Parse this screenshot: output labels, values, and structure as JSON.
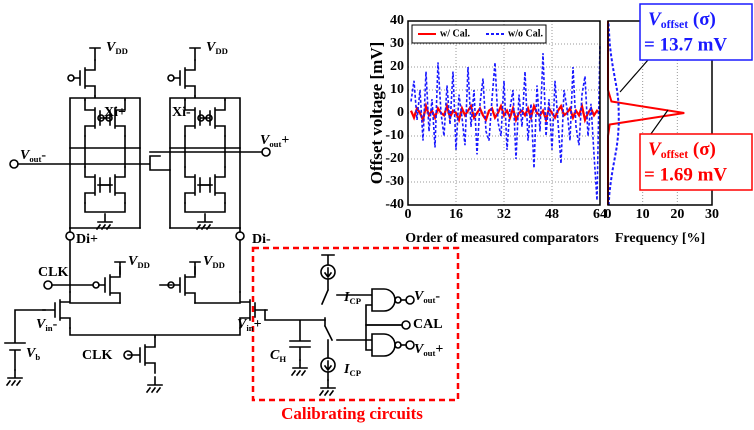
{
  "circuit": {
    "labels": [
      {
        "main": "V",
        "sub": "DD"
      },
      {
        "main": "V",
        "sub": "DD"
      },
      {
        "main": "Xi+"
      },
      {
        "main": "Xi-"
      },
      {
        "main": "V",
        "sub": "out",
        "tail": "-"
      },
      {
        "main": "V",
        "sub": "out",
        "tail": "+"
      },
      {
        "main": "Di+"
      },
      {
        "main": "Di-"
      },
      {
        "main": "V",
        "sub": "DD"
      },
      {
        "main": "V",
        "sub": "DD"
      },
      {
        "main": "CLK"
      },
      {
        "main": "V",
        "sub": "in",
        "tail": "-"
      },
      {
        "main": "V",
        "sub": "in",
        "tail": "+"
      },
      {
        "main": "V",
        "sub": "b"
      },
      {
        "main": "CLK"
      },
      {
        "main": "I",
        "sub": "CP"
      },
      {
        "main": "C",
        "sub": "H"
      },
      {
        "main": "I",
        "sub": "CP"
      },
      {
        "main": "V",
        "sub": "out",
        "tail": "-"
      },
      {
        "main": "CAL"
      },
      {
        "main": "V",
        "sub": "out",
        "tail": "+"
      }
    ],
    "caption": "Calibrating circuits"
  },
  "chart_data": [
    {
      "type": "line",
      "y_label": "Offset voltage [mV]",
      "x_label": "Order of measured comparators",
      "x": [
        1,
        2,
        3,
        4,
        5,
        6,
        7,
        8,
        9,
        10,
        11,
        12,
        13,
        14,
        15,
        16,
        17,
        18,
        19,
        20,
        21,
        22,
        23,
        24,
        25,
        26,
        27,
        28,
        29,
        30,
        31,
        32,
        33,
        34,
        35,
        36,
        37,
        38,
        39,
        40,
        41,
        42,
        43,
        44,
        45,
        46,
        47,
        48,
        49,
        50,
        51,
        52,
        53,
        54,
        55,
        56,
        57,
        58,
        59,
        60,
        61,
        62,
        63,
        64
      ],
      "series": [
        {
          "name": "w/ Cal.",
          "color": "#ff0000",
          "values": [
            1,
            -2,
            2,
            0,
            -3,
            3,
            -1,
            1,
            -2,
            2,
            0,
            -1,
            3,
            -2,
            1,
            0,
            -3,
            2,
            -1,
            1,
            3,
            -2,
            0,
            2,
            -1,
            -3,
            1,
            2,
            -2,
            0,
            3,
            -1,
            1,
            -2,
            2,
            -3,
            0,
            1,
            -1,
            2,
            -2,
            3,
            0,
            -1,
            1,
            -3,
            2,
            0,
            -2,
            1,
            3,
            -1,
            0,
            2,
            -2,
            1,
            -1,
            3,
            -3,
            0,
            2,
            -1,
            1,
            0
          ]
        },
        {
          "name": "w/o Cal.",
          "color": "#1a1aff",
          "dashed": true,
          "values": [
            5,
            14,
            -3,
            10,
            -12,
            18,
            -8,
            6,
            -15,
            22,
            0,
            -10,
            12,
            -5,
            18,
            -16,
            8,
            -2,
            -14,
            20,
            -6,
            10,
            -18,
            4,
            15,
            -8,
            -12,
            6,
            22,
            -4,
            -10,
            14,
            -16,
            2,
            10,
            -20,
            8,
            -6,
            18,
            -12,
            4,
            -24,
            12,
            -8,
            26,
            -10,
            6,
            -16,
            14,
            -4,
            -22,
            10,
            2,
            -12,
            20,
            -6,
            -14,
            8,
            16,
            -10,
            4,
            -18,
            -38,
            30
          ]
        }
      ],
      "xlim": [
        0,
        64
      ],
      "xticks": [
        0,
        16,
        32,
        48,
        64
      ],
      "ylim": [
        -40,
        40
      ],
      "yticks": [
        -40,
        -30,
        -20,
        -10,
        0,
        10,
        20,
        30,
        40
      ],
      "grid": true,
      "legend": "top-left"
    },
    {
      "type": "histogram-line",
      "x_label": "Frequency [%]",
      "bins": [
        -40,
        -35,
        -30,
        -25,
        -20,
        -15,
        -10,
        -5,
        0,
        5,
        10,
        15,
        20,
        25,
        30,
        35,
        40
      ],
      "series": [
        {
          "color": "#ff0000",
          "values": [
            0,
            0,
            0,
            0,
            0,
            0,
            0,
            0.5,
            22,
            1,
            0,
            0,
            0,
            0,
            0,
            0,
            0
          ]
        },
        {
          "color": "#1a1aff",
          "dashed": true,
          "values": [
            0.2,
            0.4,
            0.8,
            1.3,
            1.9,
            2.5,
            2.9,
            3.1,
            3.1,
            3,
            2.6,
            2,
            1.4,
            0.9,
            0.5,
            0.3,
            0.1
          ]
        }
      ],
      "xlim": [
        0,
        30
      ],
      "xticks": [
        0,
        10,
        20,
        30
      ],
      "ylim": [
        -40,
        40
      ],
      "grid": true,
      "annotations": [
        {
          "label": {
            "main": "V",
            "sub": "offset",
            "tail": " (σ)"
          },
          "text": "= 13.7 mV",
          "color": "#1a1aff"
        },
        {
          "label": {
            "main": "V",
            "sub": "offset",
            "tail": " (σ)"
          },
          "text": "= 1.69 mV",
          "color": "#ff0000"
        }
      ]
    }
  ]
}
